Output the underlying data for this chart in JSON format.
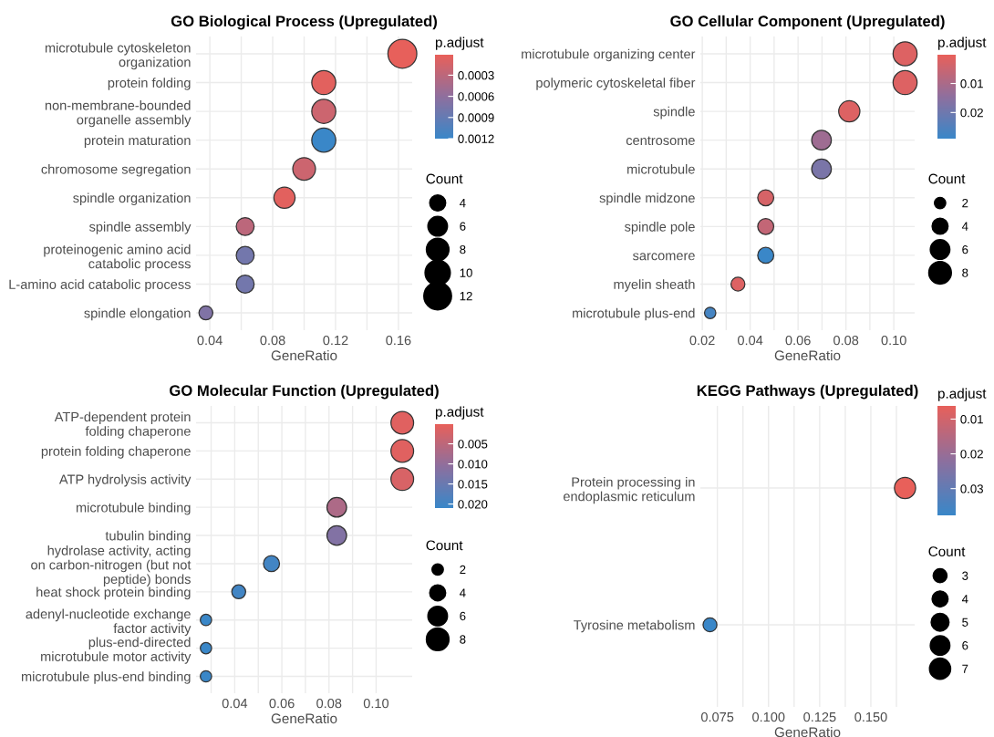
{
  "chart_data": [
    {
      "type": "bubble",
      "title": "GO Biological Process (Upregulated)",
      "xlabel": "GeneRatio",
      "orientation": "horizontal",
      "categories": [
        "microtubule cytoskeleton\norganization",
        "protein folding",
        "non-membrane-bounded\norganelle assembly",
        "protein maturation",
        "chromosome segregation",
        "spindle organization",
        "spindle assembly",
        "proteinogenic amino acid\ncatabolic process",
        "L-amino acid catabolic process",
        "spindle elongation"
      ],
      "values": [
        0.1625,
        0.1125,
        0.1125,
        0.1125,
        0.1,
        0.0875,
        0.0625,
        0.0625,
        0.0625,
        0.0375
      ],
      "sizes": [
        13,
        9,
        9,
        9,
        8,
        7,
        5,
        5,
        5,
        3
      ],
      "cvalues": [
        2e-05,
        5e-05,
        0.0002,
        0.0012,
        0.0002,
        5e-05,
        0.0003,
        0.0008,
        0.0008,
        0.0007
      ],
      "size_legend": [
        4,
        6,
        8,
        10,
        12
      ],
      "legend_title": "Count",
      "clabel": "p.adjust",
      "clim": [
        1e-05,
        0.0012
      ],
      "cticks": [
        0.0003,
        0.0006,
        0.0009,
        0.0012
      ],
      "xlim": [
        0.03125,
        0.16875
      ],
      "xticks": [
        0.04,
        {
          "value": 0.06,
          "label": null
        },
        0.08,
        {
          "value": 0.1,
          "label": null
        },
        0.12,
        {
          "value": 0.14,
          "label": null
        },
        0.16
      ],
      "grid": true
    },
    {
      "type": "bubble",
      "title": "GO Cellular Component (Upregulated)",
      "xlabel": "GeneRatio",
      "orientation": "horizontal",
      "categories": [
        "microtubule organizing center",
        "polymeric cytoskeletal fiber",
        "spindle",
        "centrosome",
        "microtubule",
        "spindle midzone",
        "spindle pole",
        "sarcomere",
        "myelin sheath",
        "microtubule plus-end"
      ],
      "values": [
        0.1047,
        0.1047,
        0.0814,
        0.0698,
        0.0698,
        0.0465,
        0.0465,
        0.0465,
        0.0349,
        0.0233
      ],
      "sizes": [
        9,
        9,
        7,
        6,
        6,
        4,
        4,
        4,
        3,
        2
      ],
      "cvalues": [
        0.002,
        0.002,
        0.002,
        0.012,
        0.018,
        0.003,
        0.006,
        0.029,
        0.002,
        0.027
      ],
      "size_legend": [
        2,
        4,
        6,
        8
      ],
      "legend_title": "Count",
      "clabel": "p.adjust",
      "clim": [
        0.0001,
        0.029
      ],
      "cticks": [
        0.01,
        0.02
      ],
      "xlim": [
        0.0192,
        0.1087
      ],
      "xticks": [
        0.02,
        {
          "value": 0.03,
          "label": null
        },
        0.04,
        {
          "value": 0.05,
          "label": null
        },
        0.06,
        {
          "value": 0.07,
          "label": null
        },
        0.08,
        {
          "value": 0.09,
          "label": null
        },
        {
          "value": 0.1,
          "label": "0.10"
        }
      ],
      "grid": true
    },
    {
      "type": "bubble",
      "title": "GO Molecular Function (Upregulated)",
      "xlabel": "GeneRatio",
      "orientation": "horizontal",
      "categories": [
        "ATP-dependent protein\nfolding chaperone",
        "protein folding chaperone",
        "ATP hydrolysis activity",
        "microtubule binding",
        "tubulin binding",
        "hydrolase activity, acting\non carbon-nitrogen (but not\npeptide) bonds",
        "heat shock protein binding",
        "adenyl-nucleotide exchange\nfactor activity",
        "plus-end-directed\nmicrotubule motor activity",
        "microtubule plus-end binding"
      ],
      "values": [
        0.1111,
        0.1111,
        0.1111,
        0.0833,
        0.0833,
        0.0556,
        0.0417,
        0.0278,
        0.0278,
        0.0278
      ],
      "sizes": [
        8,
        8,
        8,
        6,
        6,
        4,
        3,
        2,
        2,
        2
      ],
      "cvalues": [
        0.001,
        0.001,
        0.002,
        0.007,
        0.012,
        0.02,
        0.02,
        0.021,
        0.021,
        0.021
      ],
      "size_legend": [
        2,
        4,
        6,
        8
      ],
      "legend_title": "Count",
      "clabel": "p.adjust",
      "clim": [
        0.0001,
        0.021
      ],
      "cticks": [
        {
          "value": 0.005,
          "label": "0.005"
        },
        {
          "value": 0.01,
          "label": "0.010"
        },
        {
          "value": 0.015,
          "label": "0.015"
        },
        {
          "value": 0.02,
          "label": "0.020"
        }
      ],
      "xlim": [
        0.0236,
        0.1153
      ],
      "xticks": [
        {
          "value": 0.03,
          "label": null
        },
        0.04,
        {
          "value": 0.05,
          "label": null
        },
        0.06,
        {
          "value": 0.07,
          "label": null
        },
        0.08,
        {
          "value": 0.09,
          "label": null
        },
        {
          "value": 0.1,
          "label": "0.10"
        }
      ],
      "grid": true
    },
    {
      "type": "bubble",
      "title": "KEGG Pathways (Upregulated)",
      "xlabel": "GeneRatio",
      "orientation": "horizontal",
      "categories": [
        "Protein processing in\nendoplasmic reticulum",
        "Tyrosine metabolism"
      ],
      "values": [
        0.1667,
        0.0714
      ],
      "sizes": [
        7,
        3
      ],
      "cvalues": [
        0.0062,
        0.0377
      ],
      "size_legend": [
        3,
        4,
        5,
        6,
        7
      ],
      "legend_title": "Count",
      "clabel": "p.adjust",
      "clim": [
        0.0062,
        0.0377
      ],
      "cticks": [
        0.01,
        0.02,
        0.03
      ],
      "xlim": [
        0.0667,
        0.1714
      ],
      "xticks": [
        0.075,
        {
          "value": 0.0875,
          "label": null
        },
        {
          "value": 0.1,
          "label": "0.100"
        },
        {
          "value": 0.1125,
          "label": null
        },
        0.125,
        {
          "value": 0.1375,
          "label": null
        },
        {
          "value": 0.15,
          "label": "0.150"
        },
        {
          "value": 0.1625,
          "label": null
        }
      ],
      "grid": true
    }
  ]
}
